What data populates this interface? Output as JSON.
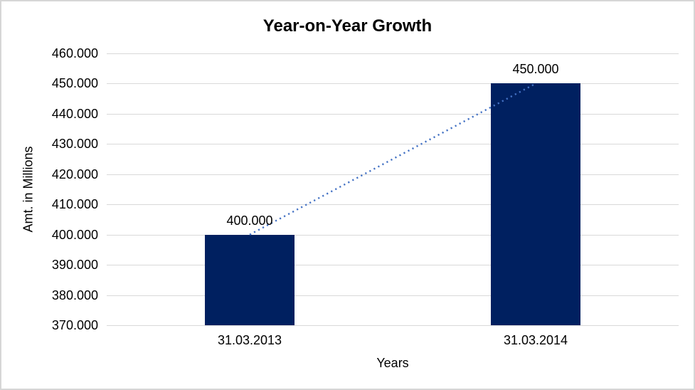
{
  "chart_data": {
    "type": "bar",
    "title": "Year-on-Year Growth",
    "xlabel": "Years",
    "ylabel": "Amt. in Millions",
    "categories": [
      "31.03.2013",
      "31.03.2014"
    ],
    "values": [
      400000,
      450000
    ],
    "data_labels": [
      "400.000",
      "450.000"
    ],
    "ylim": [
      370000,
      460000
    ],
    "ytick_interval": 10000,
    "ytick_labels": [
      "460.000",
      "450.000",
      "440.000",
      "430.000",
      "420.000",
      "410.000",
      "400.000",
      "390.000",
      "380.000",
      "370.000"
    ],
    "grid": true,
    "legend": "none",
    "trendline": {
      "type": "linear",
      "style": "dotted",
      "from_value": 400000,
      "to_value": 450000
    },
    "colors": {
      "bar": "#002060",
      "trendline": "#4472C4",
      "gridline": "#D9D9D9",
      "text": "#000000",
      "frame_border": "#D6D6D6",
      "background": "#FFFFFF"
    }
  }
}
